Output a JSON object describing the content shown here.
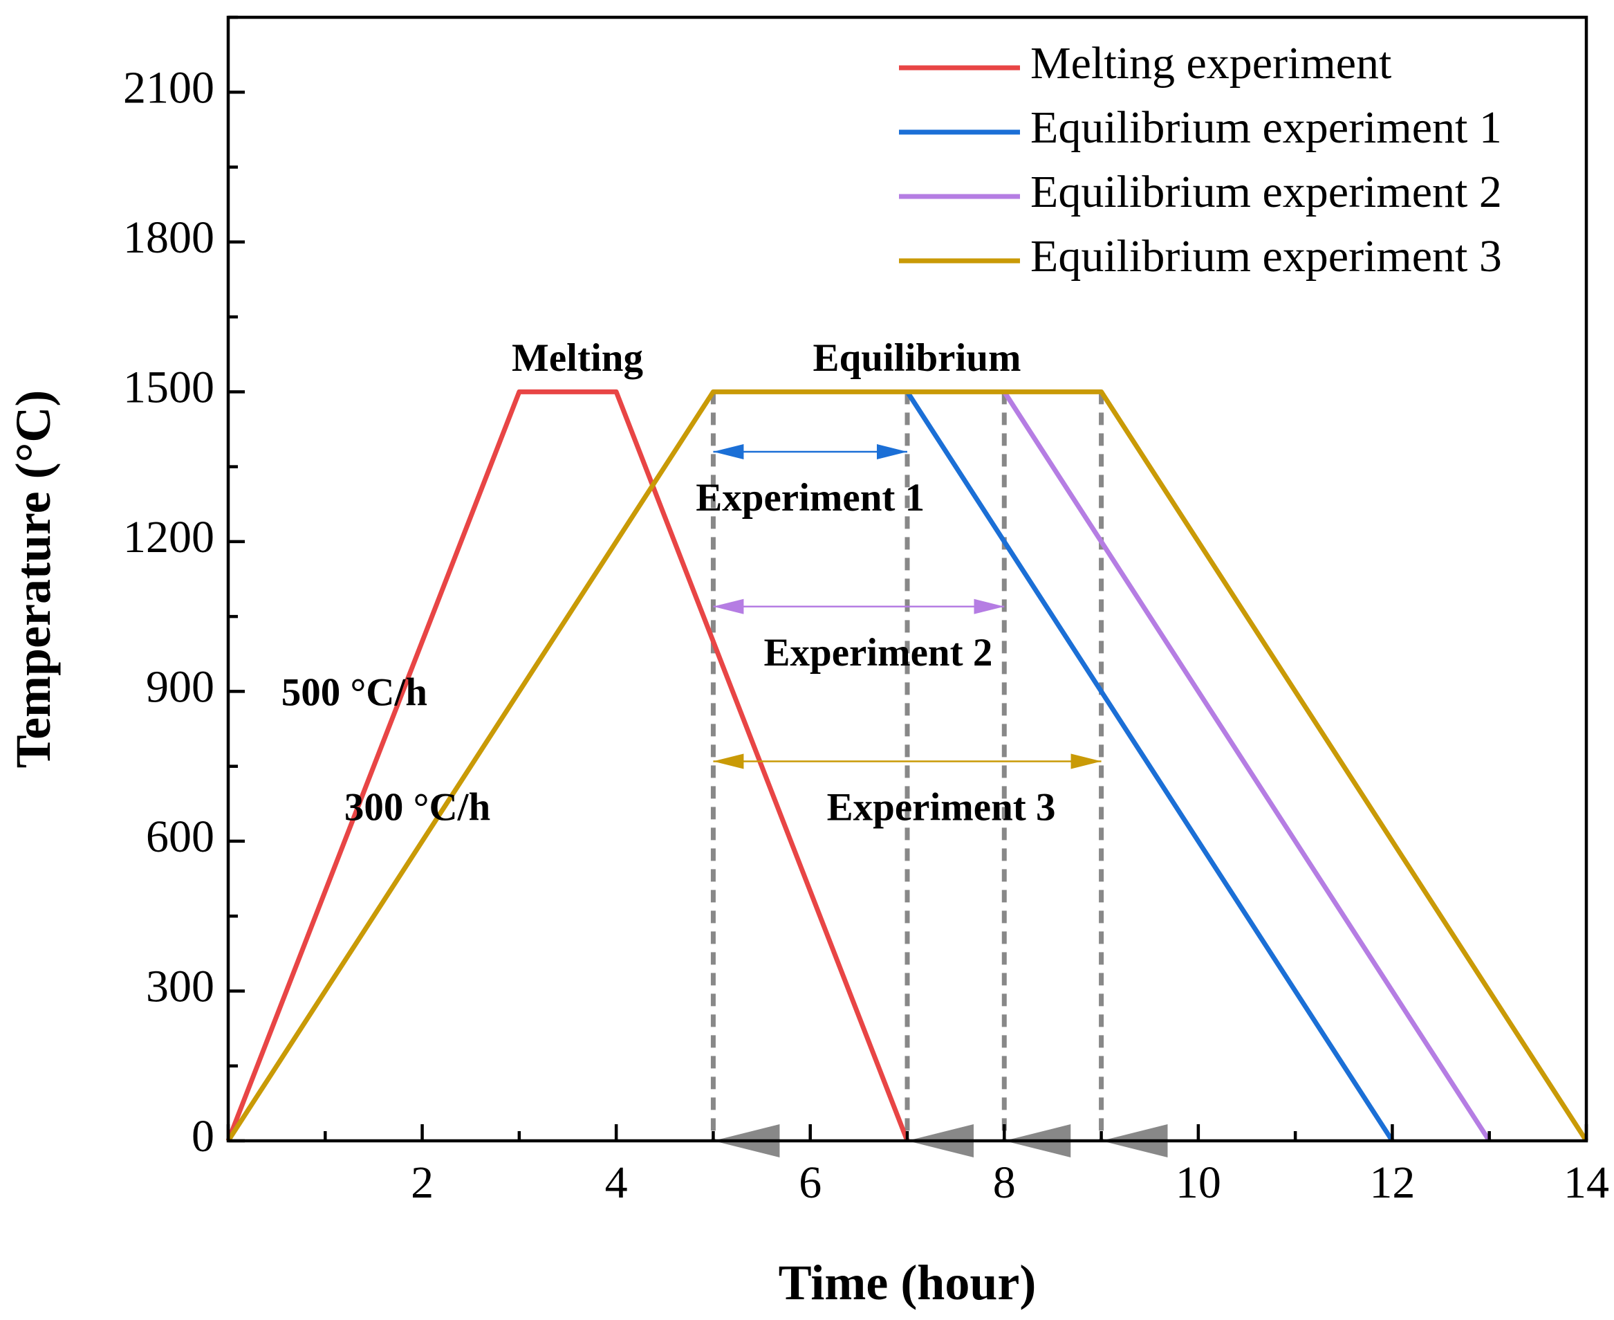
{
  "chart_data": {
    "type": "line",
    "title": "",
    "xlabel": "Time (hour)",
    "ylabel": "Temperature (°C)",
    "xlim": [
      0,
      14
    ],
    "ylim": [
      0,
      2250
    ],
    "xticks": [
      2,
      4,
      6,
      8,
      10,
      12,
      14
    ],
    "yticks": [
      0,
      300,
      600,
      900,
      1200,
      1500,
      1800,
      2100
    ],
    "legend_position": "top-right",
    "series": [
      {
        "name": "Melting experiment",
        "color": "#e84545",
        "x": [
          0,
          3,
          4,
          7
        ],
        "y": [
          0,
          1500,
          1500,
          0
        ]
      },
      {
        "name": "Equilibrium experiment 1",
        "color": "#1b6fd6",
        "x": [
          7,
          12
        ],
        "y": [
          1500,
          0
        ]
      },
      {
        "name": "Equilibrium experiment 2",
        "color": "#b57de3",
        "x": [
          8,
          13
        ],
        "y": [
          1500,
          0
        ]
      },
      {
        "name": "Equilibrium experiment 3",
        "color": "#c99a06",
        "x": [
          0,
          5,
          9,
          14
        ],
        "y": [
          0,
          1500,
          1500,
          0
        ]
      }
    ],
    "guides": {
      "color": "#888888",
      "x": [
        5,
        7,
        8,
        9
      ]
    },
    "spans": [
      {
        "label": "Experiment 1",
        "color": "#1b6fd6",
        "x0": 5,
        "x1": 7,
        "y": 1380,
        "label_x": 6,
        "label_y": 1280
      },
      {
        "label": "Experiment 2",
        "color": "#b57de3",
        "x0": 5,
        "x1": 8,
        "y": 1070,
        "label_x": 6.7,
        "label_y": 970
      },
      {
        "label": "Experiment 3",
        "color": "#c99a06",
        "x0": 5,
        "x1": 9,
        "y": 760,
        "label_x": 7.35,
        "label_y": 660
      }
    ],
    "annotations": [
      {
        "text": "Melting",
        "x": 3.6,
        "y": 1560
      },
      {
        "text": "Equilibrium",
        "x": 7.1,
        "y": 1560
      },
      {
        "text": "500 °C/h",
        "x": 1.3,
        "y": 890
      },
      {
        "text": "300 °C/h",
        "x": 1.95,
        "y": 660
      }
    ]
  }
}
